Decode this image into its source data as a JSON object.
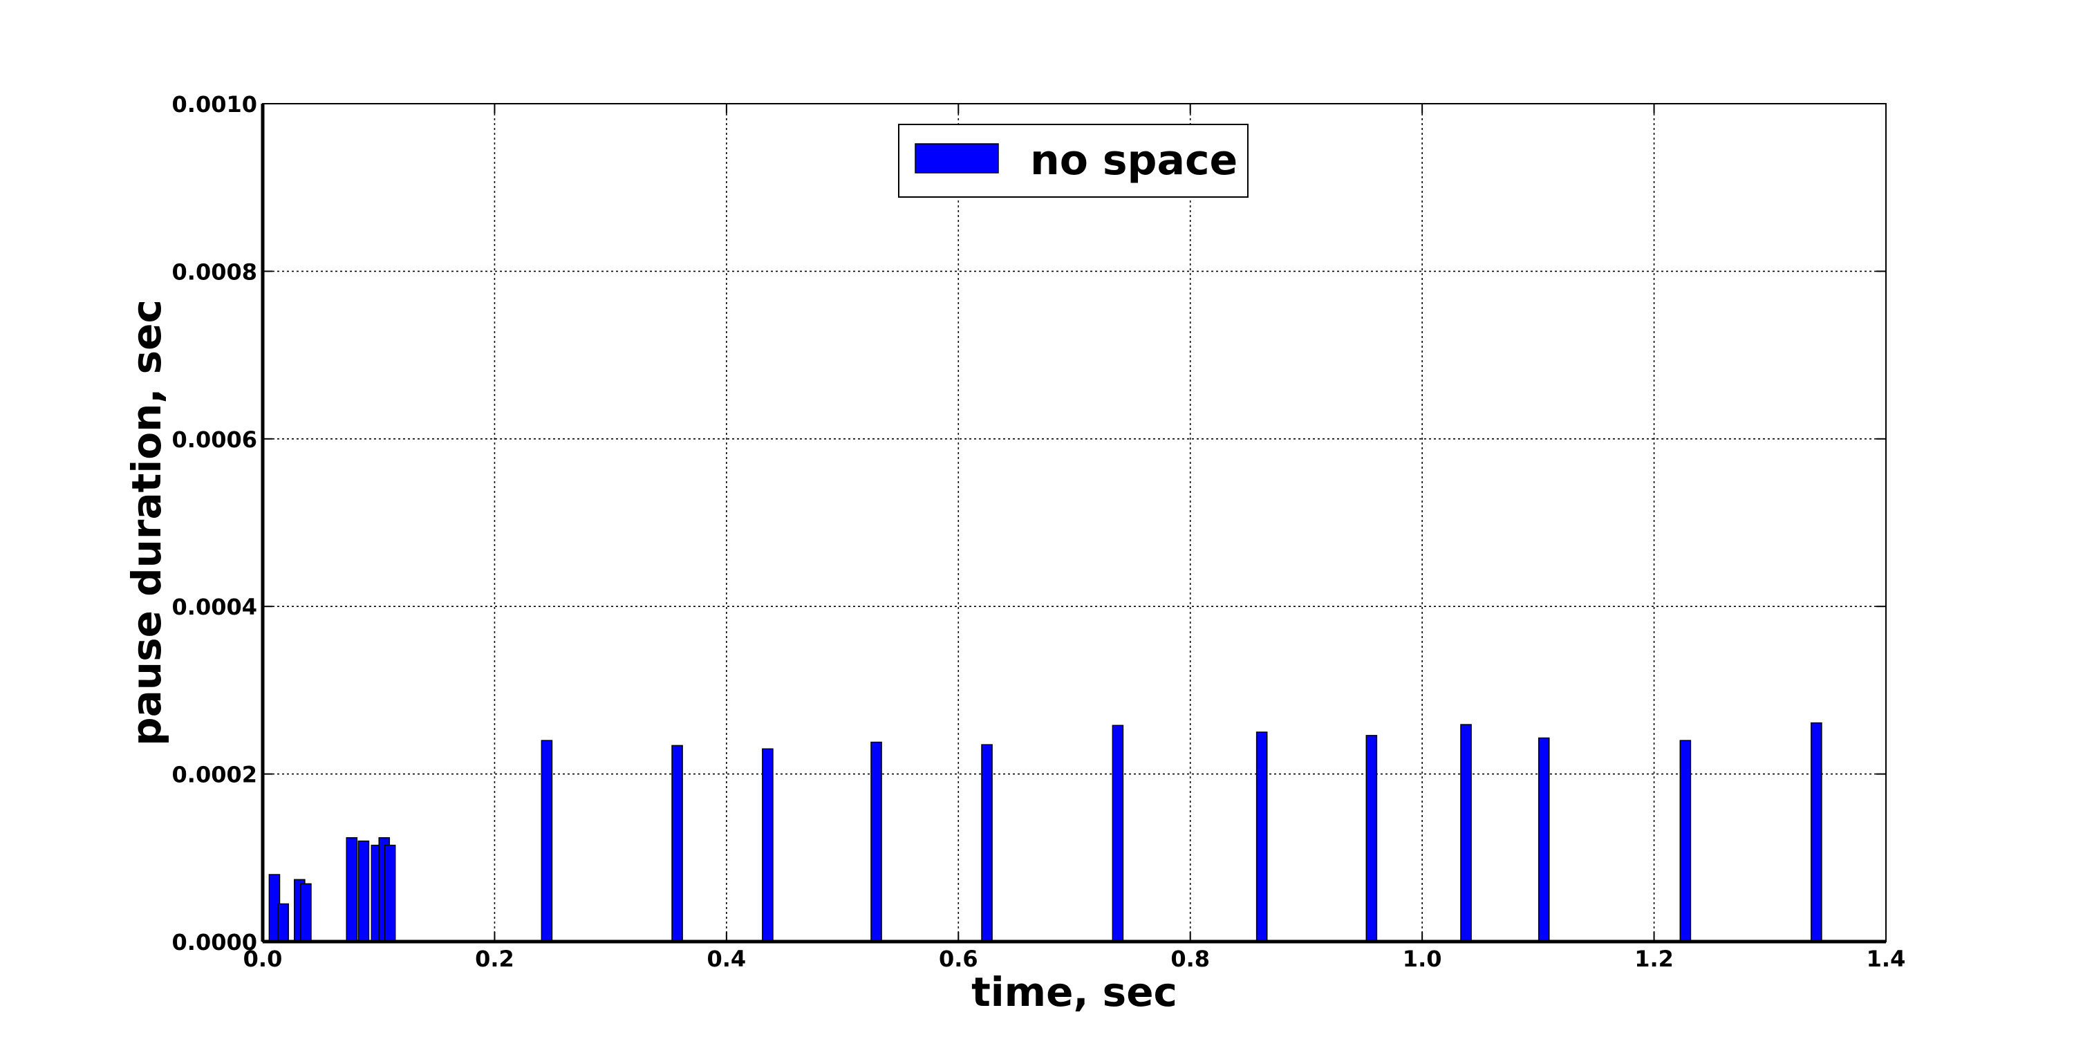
{
  "chart_data": {
    "type": "bar",
    "title": "",
    "xlabel": "time, sec",
    "ylabel": "pause duration, sec",
    "xlim": [
      0.0,
      1.4
    ],
    "ylim": [
      0.0,
      0.001
    ],
    "grid": true,
    "legend_position": "top-center",
    "x_ticks": [
      "0.0",
      "0.2",
      "0.4",
      "0.6",
      "0.8",
      "1.0",
      "1.2",
      "1.4"
    ],
    "y_ticks": [
      "0.0000",
      "0.0002",
      "0.0004",
      "0.0006",
      "0.0008",
      "0.0010"
    ],
    "series": [
      {
        "name": "no space",
        "color": "#0000ff",
        "bar_width": 0.009,
        "x": [
          0.0101,
          0.0177,
          0.0318,
          0.0372,
          0.0768,
          0.087,
          0.0983,
          0.1048,
          0.1098,
          0.245,
          0.3575,
          0.4355,
          0.5292,
          0.6246,
          0.7375,
          0.8617,
          0.9563,
          1.0378,
          1.105,
          1.227,
          1.34
        ],
        "values": [
          8e-05,
          4.5e-05,
          7.4e-05,
          6.9e-05,
          0.000124,
          0.00012,
          0.000115,
          0.000124,
          0.000115,
          0.00024,
          0.000234,
          0.00023,
          0.000238,
          0.000235,
          0.000258,
          0.00025,
          0.000246,
          0.000259,
          0.000243,
          0.00024,
          0.000261
        ]
      }
    ]
  }
}
